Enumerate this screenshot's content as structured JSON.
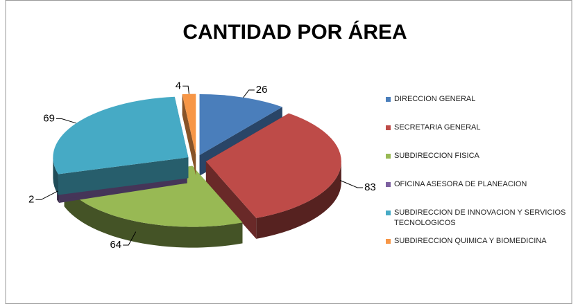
{
  "chart_data": {
    "type": "pie",
    "title": "CANTIDAD POR ÁREA",
    "categories": [
      "DIRECCION GENERAL",
      "SECRETARIA GENERAL",
      "SUBDIRECCION FISICA",
      "OFICINA ASESORA DE PLANEACION",
      "SUBDIRECCION DE INNOVACION Y SERVICIOS TECNOLOGICOS",
      "SUBDIRECCION QUIMICA Y BIOMEDICINA"
    ],
    "values": [
      26,
      83,
      64,
      2,
      69,
      4
    ],
    "colors": [
      "#4a7ebb",
      "#be4b48",
      "#98b954",
      "#7d60a0",
      "#46aac5",
      "#f79646"
    ],
    "legend": "right"
  }
}
